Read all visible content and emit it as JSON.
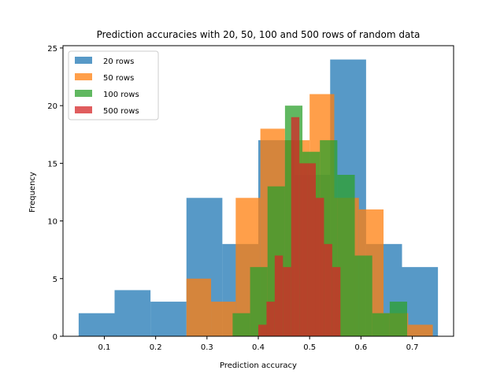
{
  "chart_data": {
    "type": "histogram",
    "title": "Prediction accuracies with 20, 50, 100 and 500 rows of random data",
    "xlabel": "Prediction accuracy",
    "ylabel": "Frequency",
    "xlim": [
      0.0195,
      0.7805
    ],
    "ylim": [
      0,
      25.2
    ],
    "xticks": [
      {
        "value": 0.1,
        "label": "0.1"
      },
      {
        "value": 0.2,
        "label": "0.2"
      },
      {
        "value": 0.3,
        "label": "0.3"
      },
      {
        "value": 0.4,
        "label": "0.4"
      },
      {
        "value": 0.5,
        "label": "0.5"
      },
      {
        "value": 0.6,
        "label": "0.6"
      },
      {
        "value": 0.7,
        "label": "0.7"
      }
    ],
    "yticks": [
      {
        "value": 0,
        "label": "0"
      },
      {
        "value": 5,
        "label": "5"
      },
      {
        "value": 10,
        "label": "10"
      },
      {
        "value": 15,
        "label": "15"
      },
      {
        "value": 20,
        "label": "20"
      },
      {
        "value": 25,
        "label": "25"
      }
    ],
    "legend_position": "top-left",
    "grid": false,
    "opacity": 0.75,
    "series": [
      {
        "name": "20 rows",
        "color": "#1f77b4",
        "bin_edges": [
          0.05,
          0.12,
          0.19,
          0.26,
          0.33,
          0.4,
          0.47,
          0.54,
          0.61,
          0.68,
          0.75
        ],
        "counts": [
          2,
          4,
          3,
          12,
          8,
          17,
          14,
          24,
          8,
          6
        ]
      },
      {
        "name": "50 rows",
        "color": "#ff7f0e",
        "bin_edges": [
          0.26,
          0.308,
          0.356,
          0.404,
          0.452,
          0.5,
          0.548,
          0.596,
          0.644,
          0.692,
          0.74
        ],
        "counts": [
          5,
          3,
          12,
          18,
          17,
          21,
          12,
          11,
          2,
          1
        ]
      },
      {
        "name": "100 rows",
        "color": "#2ca02c",
        "bin_edges": [
          0.35,
          0.384,
          0.418,
          0.452,
          0.486,
          0.52,
          0.554,
          0.588,
          0.622,
          0.656,
          0.69
        ],
        "counts": [
          2,
          6,
          13,
          20,
          16,
          17,
          14,
          7,
          2,
          3
        ]
      },
      {
        "name": "500 rows",
        "color": "#d62728",
        "bin_edges": [
          0.4,
          0.416,
          0.432,
          0.448,
          0.464,
          0.48,
          0.496,
          0.512,
          0.528,
          0.544,
          0.56
        ],
        "counts": [
          1,
          3,
          7,
          6,
          19,
          15,
          15,
          12,
          8,
          6
        ]
      }
    ]
  }
}
